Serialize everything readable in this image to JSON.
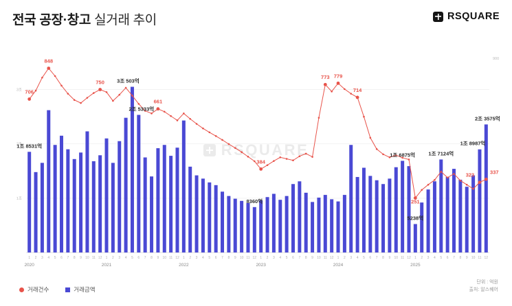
{
  "header": {
    "title_bold": "전국 공장·창고",
    "title_light": "실거래 추이"
  },
  "logo": {
    "text": "RSQUARE"
  },
  "watermark": {
    "text": "RSQUARE"
  },
  "legend": [
    {
      "label": "거래건수",
      "color": "#e8534a",
      "shape": "circle"
    },
    {
      "label": "거래금액",
      "color": "#4a49d4",
      "shape": "square"
    }
  ],
  "footnote": {
    "unit": "단위 : 억원",
    "source": "출처: 알스퀘어"
  },
  "chart_data": {
    "type": "combo",
    "title": "전국 공장·창고 실거래 추이",
    "x": {
      "years": [
        "2020",
        "2021",
        "2022",
        "2023",
        "2024",
        "2025"
      ],
      "month_numbers": [
        "1",
        "2",
        "3",
        "4",
        "5",
        "6",
        "7",
        "8",
        "9",
        "10",
        "11",
        "12"
      ]
    },
    "y_left": {
      "unit": "억원",
      "max": 36000,
      "ticks": [
        {
          "label": "1조",
          "value": 10000
        },
        {
          "label": "2조",
          "value": 20000
        },
        {
          "label": "3조",
          "value": 30000
        }
      ]
    },
    "y_right": {
      "max": 900,
      "ticks": [
        {
          "label": "900",
          "value": 900
        }
      ]
    },
    "series": [
      {
        "name": "거래건수",
        "type": "line",
        "axis": "right",
        "color": "#e8534a",
        "values": [
          706,
          745,
          805,
          848,
          812,
          768,
          731,
          702,
          688,
          712,
          734,
          750,
          738,
          698,
          726,
          758,
          722,
          684,
          652,
          640,
          661,
          648,
          628,
          608,
          640,
          615,
          592,
          571,
          553,
          536,
          518,
          499,
          481,
          462,
          441,
          420,
          384,
          402,
          421,
          438,
          431,
          424,
          443,
          455,
          440,
          620,
          773,
          741,
          779,
          752,
          731,
          714,
          625,
          528,
          476,
          452,
          438,
          448,
          436,
          428,
          251,
          288,
          312,
          334,
          372,
          345,
          362,
          331,
          312,
          293,
          323,
          337
        ]
      },
      {
        "name": "거래금액",
        "type": "bar",
        "axis": "left",
        "color": "#4a49d4",
        "values": [
          18531,
          14800,
          16500,
          26200,
          19800,
          21500,
          19000,
          17200,
          18400,
          22300,
          16800,
          17900,
          21000,
          16500,
          20500,
          24800,
          30503,
          25333,
          17500,
          14000,
          19200,
          19800,
          17800,
          19300,
          24300,
          15800,
          14200,
          13600,
          12900,
          12400,
          11200,
          10400,
          9900,
          9500,
          9100,
          8360,
          9600,
          10200,
          10800,
          9700,
          10400,
          12600,
          13100,
          11000,
          9300,
          10100,
          10600,
          9800,
          9400,
          10600,
          19800,
          13900,
          15600,
          14100,
          13300,
          12600,
          13600,
          15700,
          16875,
          15900,
          5238,
          9200,
          11600,
          13100,
          17124,
          13900,
          15400,
          13400,
          12100,
          14200,
          18987,
          23575
        ]
      }
    ],
    "annotations": [
      {
        "index": 0,
        "series": "count",
        "text": "706"
      },
      {
        "index": 3,
        "series": "count",
        "text": "848"
      },
      {
        "index": 11,
        "series": "count",
        "text": "750"
      },
      {
        "index": 20,
        "series": "count",
        "text": "661"
      },
      {
        "index": 36,
        "series": "count",
        "text": "384"
      },
      {
        "index": 46,
        "series": "count",
        "text": "773"
      },
      {
        "index": 48,
        "series": "count",
        "text": "779"
      },
      {
        "index": 51,
        "series": "count",
        "text": "714"
      },
      {
        "index": 60,
        "series": "count",
        "text": "251",
        "dy": 16
      },
      {
        "index": 70,
        "series": "count",
        "text": "323",
        "dx": -14
      },
      {
        "index": 71,
        "series": "count",
        "text": "337",
        "dx": 12
      },
      {
        "index": 0,
        "series": "amount",
        "text": "1조 8531억"
      },
      {
        "index": 16,
        "series": "amount",
        "text": "3조 503억",
        "dx": -6
      },
      {
        "index": 17,
        "series": "amount",
        "text": "2조 5333억",
        "dx": 4
      },
      {
        "index": 35,
        "series": "amount",
        "text": "8360억"
      },
      {
        "index": 58,
        "series": "amount",
        "text": "1조 6875억"
      },
      {
        "index": 60,
        "series": "amount",
        "text": "5238억"
      },
      {
        "index": 64,
        "series": "amount",
        "text": "1조 7124억"
      },
      {
        "index": 70,
        "series": "amount",
        "text": "1조 8987억",
        "dx": -10
      },
      {
        "index": 71,
        "series": "amount",
        "text": "2조 3575억",
        "dx": 2
      }
    ]
  }
}
